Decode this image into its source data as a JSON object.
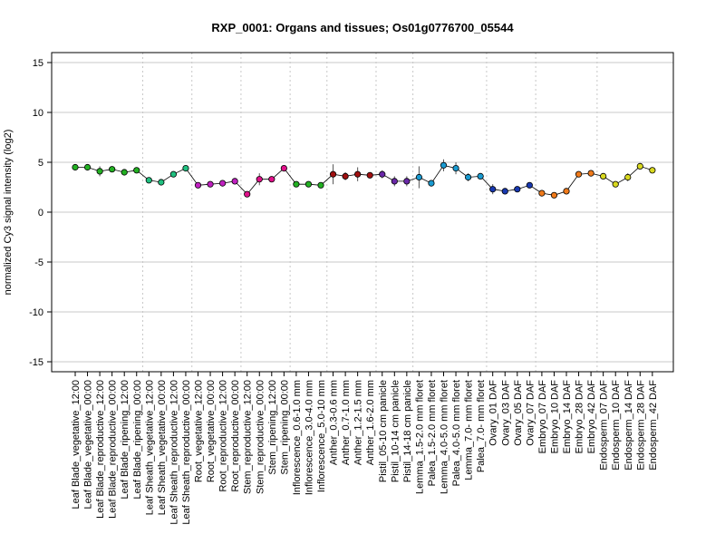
{
  "chart_data": {
    "type": "line",
    "title": "RXP_0001: Organs and tissues; Os01g0776700_05544",
    "xlabel": "",
    "ylabel": "normalized Cy3 signal intensity (log2)",
    "ylim": [
      -16,
      16
    ],
    "yticks": [
      -15,
      -10,
      -5,
      0,
      5,
      10,
      15
    ],
    "grid": "horizontal at y ticks, dotted vertical at group boundaries",
    "categories": [
      "Leaf Blade_vegetative_12:00",
      "Leaf Blade_vegetative_00:00",
      "Leaf Blade_reproductive_12:00",
      "Leaf Blade_reproductive_00:00",
      "Leaf Blade_ripening_12:00",
      "Leaf Blade_ripening_00:00",
      "Leaf Sheath_vegetative_12:00",
      "Leaf Sheath_vegetative_00:00",
      "Leaf Sheath_reproductive_12:00",
      "Leaf Sheath_reproductive_00:00",
      "Root_vegetative_12:00",
      "Root_vegetative_00:00",
      "Root_reproductive_12:00",
      "Root_reproductive_00:00",
      "Stem_reproductive_12:00",
      "Stem_reproductive_00:00",
      "Stem_ripening_12:00",
      "Stem_ripening_00:00",
      "Inflorescence_0.6-1.0 mm",
      "Inflorescence_3.0-4.0 mm",
      "Inflorescence_5.0-10 mm",
      "Anther_0.3-0.6 mm",
      "Anther_0.7-1.0 mm",
      "Anther_1.2-1.5 mm",
      "Anther_1.6-2.0 mm",
      "Pistil_05-10 cm panicle",
      "Pistil_10-14 cm panicle",
      "Pistil_14-18 cm panicle",
      "Lemma_1.5-2.0 mm floret",
      "Palea_1.5-2.0 mm floret",
      "Lemma_4.0-5.0 mm floret",
      "Palea_4.0-5.0 mm floret",
      "Lemma_7.0- mm floret",
      "Palea_7.0- mm floret",
      "Ovary_01 DAF",
      "Ovary_03 DAF",
      "Ovary_05 DAF",
      "Ovary_07 DAF",
      "Embryo_07 DAF",
      "Embryo_10 DAF",
      "Embryo_14 DAF",
      "Embryo_28 DAF",
      "Embryo_42 DAF",
      "Endosperm_07 DAF",
      "Endosperm_10 DAF",
      "Endosperm_14 DAF",
      "Endosperm_28 DAF",
      "Endosperm_42 DAF"
    ],
    "values": [
      4.5,
      4.5,
      4.1,
      4.3,
      4.0,
      4.2,
      3.2,
      3.0,
      3.8,
      4.4,
      2.7,
      2.8,
      2.9,
      3.1,
      1.8,
      3.3,
      3.3,
      4.4,
      2.8,
      2.8,
      2.7,
      3.8,
      3.6,
      3.8,
      3.7,
      3.8,
      3.1,
      3.1,
      3.5,
      2.9,
      4.7,
      4.4,
      3.5,
      3.6,
      2.3,
      2.1,
      2.3,
      2.7,
      1.9,
      1.7,
      2.1,
      3.8,
      3.9,
      3.6,
      2.8,
      3.5,
      4.6,
      4.2
    ],
    "error": [
      0.2,
      0.3,
      0.5,
      0.2,
      0.2,
      0.2,
      0.3,
      0.3,
      0.3,
      0.2,
      0.2,
      0.3,
      0.2,
      0.2,
      0.2,
      0.6,
      0.3,
      0.2,
      0.2,
      0.2,
      0.2,
      1.0,
      0.4,
      0.7,
      0.3,
      0.4,
      0.5,
      0.5,
      1.1,
      0.3,
      0.6,
      0.6,
      0.4,
      0.3,
      0.5,
      0.3,
      0.2,
      0.2,
      0.3,
      0.2,
      0.3,
      0.3,
      0.2,
      0.3,
      0.2,
      0.4,
      0.2,
      0.2
    ],
    "groups": [
      {
        "count": 6,
        "color": "#22b022"
      },
      {
        "count": 4,
        "color": "#20c080"
      },
      {
        "count": 4,
        "color": "#c020c0"
      },
      {
        "count": 4,
        "color": "#e0108a"
      },
      {
        "count": 3,
        "color": "#22b022"
      },
      {
        "count": 4,
        "color": "#a01010"
      },
      {
        "count": 3,
        "color": "#6a28a8"
      },
      {
        "count": 6,
        "color": "#1a9ad0"
      },
      {
        "count": 4,
        "color": "#1838b0"
      },
      {
        "count": 5,
        "color": "#f07a1a"
      },
      {
        "count": 5,
        "color": "#d8d820"
      }
    ]
  }
}
